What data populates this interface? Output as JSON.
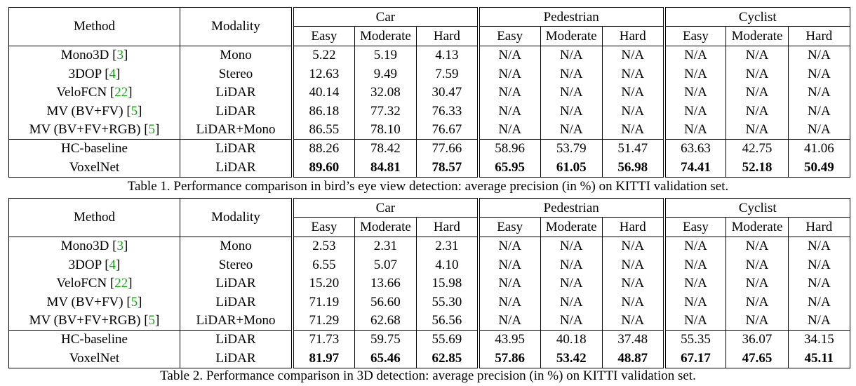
{
  "headers": {
    "method": "Method",
    "modality": "Modality",
    "groups": [
      "Car",
      "Pedestrian",
      "Cyclist"
    ],
    "subcols": [
      "Easy",
      "Moderate",
      "Hard"
    ]
  },
  "tables": [
    {
      "caption": "Table 1. Performance comparison in bird’s eye view detection: average precision (in %) on KITTI validation set.",
      "rows": [
        {
          "method": "Mono3D",
          "ref": "3",
          "modality": "Mono",
          "values": [
            "5.22",
            "5.19",
            "4.13",
            "N/A",
            "N/A",
            "N/A",
            "N/A",
            "N/A",
            "N/A"
          ]
        },
        {
          "method": "3DOP",
          "ref": "4",
          "modality": "Stereo",
          "values": [
            "12.63",
            "9.49",
            "7.59",
            "N/A",
            "N/A",
            "N/A",
            "N/A",
            "N/A",
            "N/A"
          ]
        },
        {
          "method": "VeloFCN",
          "ref": "22",
          "modality": "LiDAR",
          "values": [
            "40.14",
            "32.08",
            "30.47",
            "N/A",
            "N/A",
            "N/A",
            "N/A",
            "N/A",
            "N/A"
          ]
        },
        {
          "method": "MV (BV+FV)",
          "ref": "5",
          "modality": "LiDAR",
          "values": [
            "86.18",
            "77.32",
            "76.33",
            "N/A",
            "N/A",
            "N/A",
            "N/A",
            "N/A",
            "N/A"
          ]
        },
        {
          "method": "MV (BV+FV+RGB)",
          "ref": "5",
          "modality": "LiDAR+Mono",
          "values": [
            "86.55",
            "78.10",
            "76.67",
            "N/A",
            "N/A",
            "N/A",
            "N/A",
            "N/A",
            "N/A"
          ]
        },
        {
          "method": "HC-baseline",
          "ref": "",
          "modality": "LiDAR",
          "values": [
            "88.26",
            "78.42",
            "77.66",
            "58.96",
            "53.79",
            "51.47",
            "63.63",
            "42.75",
            "41.06"
          ]
        },
        {
          "method": "VoxelNet",
          "ref": "",
          "modality": "LiDAR",
          "bold": true,
          "values": [
            "89.60",
            "84.81",
            "78.57",
            "65.95",
            "61.05",
            "56.98",
            "74.41",
            "52.18",
            "50.49"
          ]
        }
      ]
    },
    {
      "caption": "Table 2. Performance comparison in 3D detection: average precision (in %) on KITTI validation set.",
      "rows": [
        {
          "method": "Mono3D",
          "ref": "3",
          "modality": "Mono",
          "values": [
            "2.53",
            "2.31",
            "2.31",
            "N/A",
            "N/A",
            "N/A",
            "N/A",
            "N/A",
            "N/A"
          ]
        },
        {
          "method": "3DOP",
          "ref": "4",
          "modality": "Stereo",
          "values": [
            "6.55",
            "5.07",
            "4.10",
            "N/A",
            "N/A",
            "N/A",
            "N/A",
            "N/A",
            "N/A"
          ]
        },
        {
          "method": "VeloFCN",
          "ref": "22",
          "modality": "LiDAR",
          "values": [
            "15.20",
            "13.66",
            "15.98",
            "N/A",
            "N/A",
            "N/A",
            "N/A",
            "N/A",
            "N/A"
          ]
        },
        {
          "method": "MV (BV+FV)",
          "ref": "5",
          "modality": "LiDAR",
          "values": [
            "71.19",
            "56.60",
            "55.30",
            "N/A",
            "N/A",
            "N/A",
            "N/A",
            "N/A",
            "N/A"
          ]
        },
        {
          "method": "MV (BV+FV+RGB)",
          "ref": "5",
          "modality": "LiDAR+Mono",
          "values": [
            "71.29",
            "62.68",
            "56.56",
            "N/A",
            "N/A",
            "N/A",
            "N/A",
            "N/A",
            "N/A"
          ]
        },
        {
          "method": "HC-baseline",
          "ref": "",
          "modality": "LiDAR",
          "values": [
            "71.73",
            "59.75",
            "55.69",
            "43.95",
            "40.18",
            "37.48",
            "55.35",
            "36.07",
            "34.15"
          ]
        },
        {
          "method": "VoxelNet",
          "ref": "",
          "modality": "LiDAR",
          "bold": true,
          "values": [
            "81.97",
            "65.46",
            "62.85",
            "57.86",
            "53.42",
            "48.87",
            "67.17",
            "47.65",
            "45.11"
          ]
        }
      ]
    }
  ]
}
